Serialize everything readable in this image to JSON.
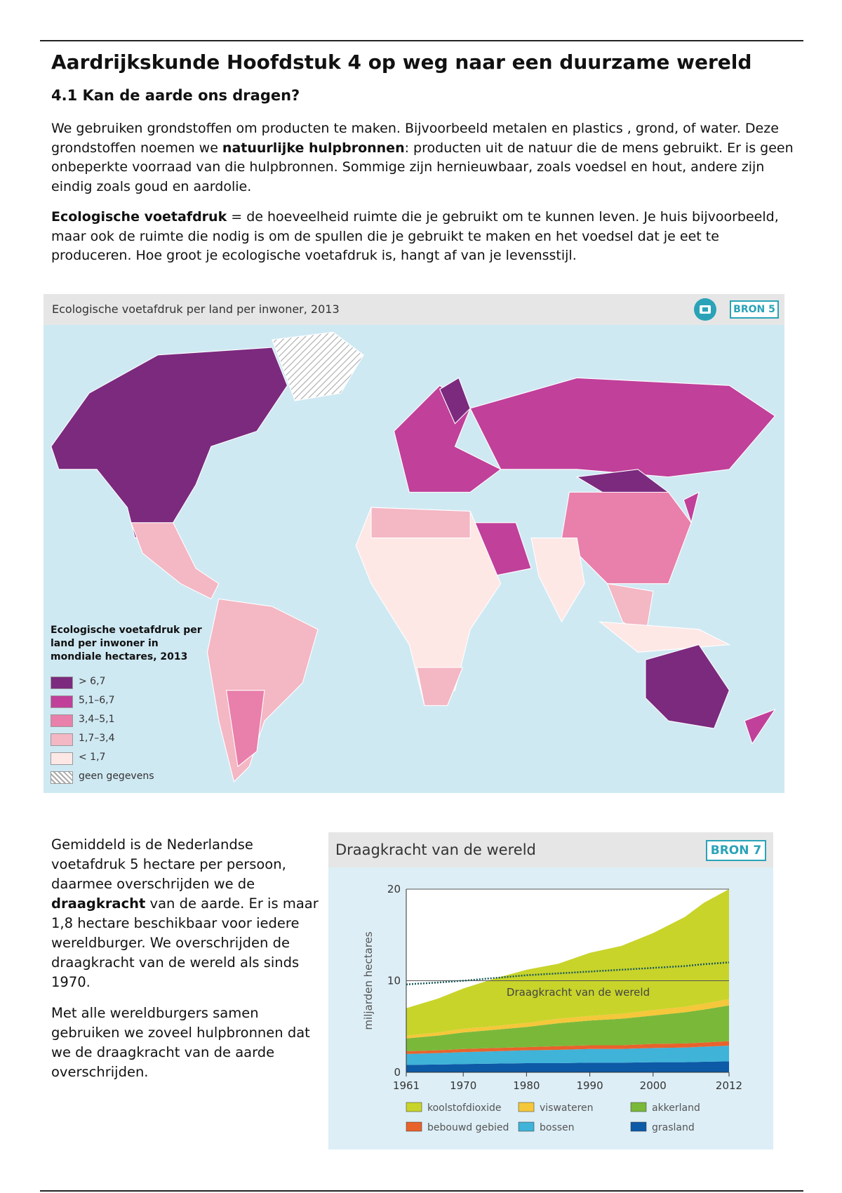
{
  "header": {
    "title": "Aardrijkskunde Hoofdstuk 4 op weg naar een duurzame wereld",
    "subtitle": "4.1 Kan de aarde ons dragen?"
  },
  "intro": [
    {
      "parts": [
        {
          "text": "We gebruiken grondstoffen om producten te maken. Bijvoorbeeld metalen en plastics , grond, of water. Deze grondstoffen noemen we "
        },
        {
          "text": "natuurlijke hulpbronnen",
          "bold": true
        },
        {
          "text": ": producten uit de natuur die de mens gebruikt. Er is geen onbeperkte voorraad van die hulpbronnen. Sommige zijn hernieuwbaar, zoals voedsel en hout, andere zijn eindig zoals goud en aardolie."
        }
      ]
    },
    {
      "parts": [
        {
          "text": "Ecologische voetafdruk",
          "bold": true
        },
        {
          "text": " = de hoeveelheid ruimte die je gebruikt om te kunnen leven. Je huis bijvoorbeeld, maar ook de ruimte die nodig is om de spullen die je gebruikt te maken en het voedsel dat je eet te produceren. Hoe groot je ecologische voetafdruk is, hangt af van je levensstijl."
        }
      ]
    }
  ],
  "map": {
    "title": "Ecologische voetafdruk per land per inwoner, 2013",
    "badge": "BRON 5",
    "legend_title": "Ecologische voetafdruk per land per inwoner in mondiale hectares, 2013",
    "legend": [
      {
        "label": "> 6,7",
        "color": "#7b2a7e"
      },
      {
        "label": "5,1–6,7",
        "color": "#c0409a"
      },
      {
        "label": "3,4–5,1",
        "color": "#e97fab"
      },
      {
        "label": "1,7–3,4",
        "color": "#f4b7c4"
      },
      {
        "label": "< 1,7",
        "color": "#fde8e6"
      },
      {
        "label": "geen gegevens",
        "hatched": true
      }
    ]
  },
  "lower": [
    {
      "parts": [
        {
          "text": "Gemiddeld is de Nederlandse voetafdruk 5 hectare per persoon, daarmee overschrijden we de "
        },
        {
          "text": "draagkracht",
          "bold": true
        },
        {
          "text": " van de aarde. Er is maar 1,8 hectare beschikbaar voor iedere wereldburger. We overschrijden de draagkracht van de wereld als sinds 1970."
        }
      ]
    },
    {
      "parts": [
        {
          "text": "Met alle wereldburgers samen gebruiken we zoveel hulpbronnen dat we de draagkracht van de aarde overschrijden."
        }
      ]
    }
  ],
  "chart_data": {
    "type": "stacked_area",
    "title": "Draagkracht van de wereld",
    "badge": "BRON 7",
    "y_label": "miljarden hectares",
    "x": [
      1961,
      1966,
      1970,
      1975,
      1980,
      1985,
      1990,
      1995,
      2000,
      2005,
      2008,
      2012
    ],
    "xlim": [
      1961,
      2012
    ],
    "xticks": [
      1961,
      1970,
      1980,
      1990,
      2000,
      2012
    ],
    "ylim": [
      0,
      20
    ],
    "yticks": [
      0,
      10,
      20
    ],
    "series": [
      {
        "name": "koolstofdioxide",
        "color": "#c8d42a",
        "values": [
          3.0,
          3.7,
          4.4,
          5.2,
          5.8,
          6.0,
          6.9,
          7.4,
          8.4,
          9.8,
          11.0,
          12.0
        ]
      },
      {
        "name": "viswateren",
        "color": "#f5c73a",
        "values": [
          0.3,
          0.35,
          0.4,
          0.4,
          0.45,
          0.5,
          0.5,
          0.55,
          0.6,
          0.6,
          0.65,
          0.7
        ]
      },
      {
        "name": "akkerland",
        "color": "#7ab83a",
        "values": [
          1.4,
          1.6,
          1.8,
          2.0,
          2.2,
          2.5,
          2.7,
          2.9,
          3.1,
          3.4,
          3.6,
          3.9
        ]
      },
      {
        "name": "bebouwd gebied",
        "color": "#e8622c",
        "values": [
          0.3,
          0.3,
          0.35,
          0.35,
          0.35,
          0.4,
          0.4,
          0.4,
          0.45,
          0.45,
          0.45,
          0.5
        ]
      },
      {
        "name": "bossen",
        "color": "#3fb3d8",
        "values": [
          1.2,
          1.25,
          1.3,
          1.35,
          1.4,
          1.45,
          1.5,
          1.5,
          1.55,
          1.6,
          1.65,
          1.7
        ]
      },
      {
        "name": "grasland",
        "color": "#0d5aa7",
        "values": [
          0.8,
          0.85,
          0.9,
          0.95,
          1.0,
          1.0,
          1.05,
          1.05,
          1.1,
          1.1,
          1.15,
          1.2
        ]
      }
    ],
    "capacity": {
      "label": "Draagkracht van de wereld",
      "values": [
        9.6,
        9.8,
        10.0,
        10.3,
        10.6,
        10.8,
        11.0,
        11.2,
        11.4,
        11.6,
        11.8,
        12.0
      ]
    }
  }
}
